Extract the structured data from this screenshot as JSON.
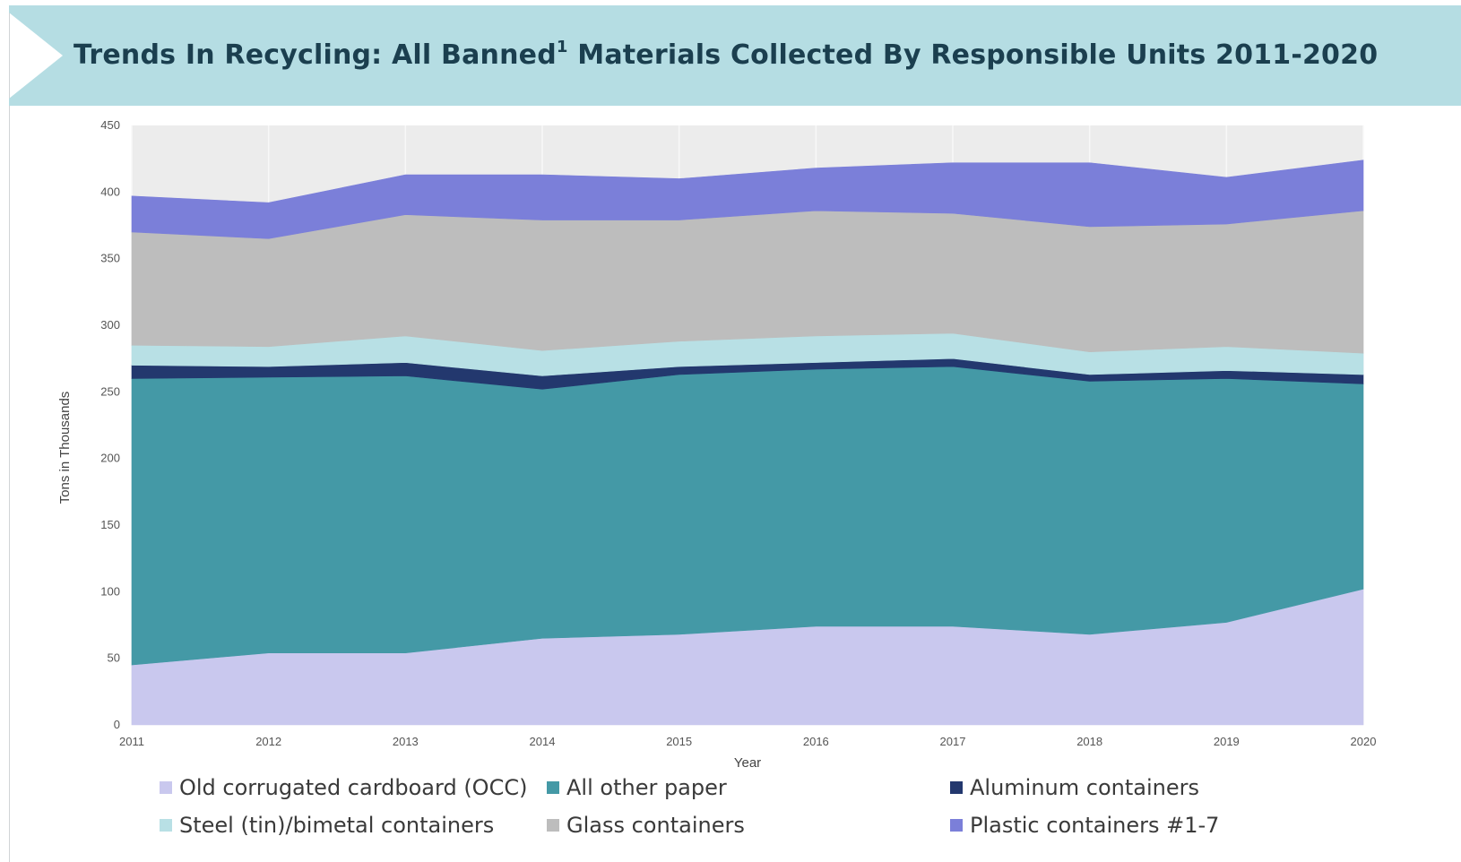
{
  "title": {
    "main": "Trends In Recycling: All Banned",
    "superscript": "1",
    "rest": " Materials Collected By Responsible Units 2011-2020"
  },
  "colors": {
    "banner": "#b5dde3",
    "plot_bg": "#ececec",
    "OCC": "#c9c8ee",
    "All other paper": "#4499a6",
    "Aluminum containers": "#23386e",
    "Steel (tin)/bimetal containers": "#b8e0e5",
    "Glass containers": "#bdbdbd",
    "Plastic containers #1-7": "#7b7fd9"
  },
  "chart_data": {
    "type": "area",
    "stacked": true,
    "title": "Trends In Recycling: All Banned1 Materials Collected By Responsible Units 2011-2020",
    "xlabel": "Year",
    "ylabel": "Tons in Thousands",
    "x": [
      2011,
      2012,
      2013,
      2014,
      2015,
      2016,
      2017,
      2018,
      2019,
      2020
    ],
    "ylim": [
      0,
      450
    ],
    "yticks": [
      0,
      50,
      100,
      150,
      200,
      250,
      300,
      350,
      400,
      450
    ],
    "grid": true,
    "legend_position": "bottom",
    "series": [
      {
        "name": "Old corrugated cardboard (OCC)",
        "color": "#c9c8ee",
        "values": [
          45,
          54,
          54,
          65,
          68,
          74,
          74,
          68,
          77,
          102
        ]
      },
      {
        "name": "All other paper",
        "color": "#4499a6",
        "values": [
          215,
          207,
          208,
          187,
          195,
          193,
          195,
          190,
          183,
          154
        ]
      },
      {
        "name": "Aluminum containers",
        "color": "#23386e",
        "values": [
          10,
          8,
          10,
          10,
          6,
          5,
          6,
          5,
          6,
          7
        ]
      },
      {
        "name": "Steel (tin)/bimetal containers",
        "color": "#b8e0e5",
        "values": [
          15,
          15,
          20,
          19,
          19,
          20,
          19,
          17,
          18,
          16
        ]
      },
      {
        "name": "Glass containers",
        "color": "#bdbdbd",
        "values": [
          85,
          81,
          91,
          98,
          91,
          94,
          90,
          94,
          92,
          107
        ]
      },
      {
        "name": "Plastic containers #1-7",
        "color": "#7b7fd9",
        "values": [
          27,
          27,
          30,
          34,
          31,
          32,
          38,
          48,
          35,
          38
        ]
      }
    ]
  },
  "legend": [
    {
      "label": "Old corrugated cardboard (OCC)"
    },
    {
      "label": "All other paper"
    },
    {
      "label": "Aluminum containers"
    },
    {
      "label": "Steel (tin)/bimetal containers"
    },
    {
      "label": "Glass containers"
    },
    {
      "label": "Plastic containers #1-7"
    }
  ]
}
